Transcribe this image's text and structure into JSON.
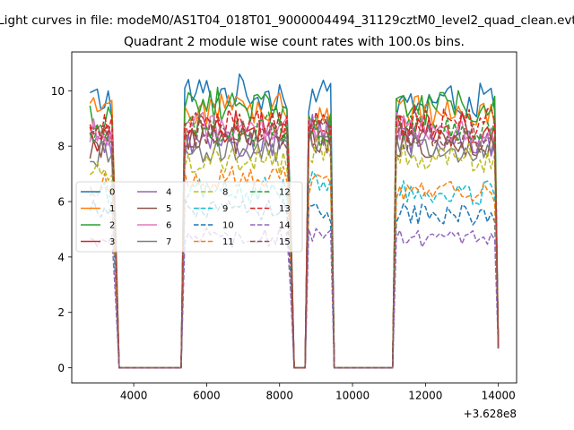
{
  "chart_data": {
    "type": "line",
    "suptitle": "Light curves in file: modeM0/AS1T04_018T01_9000004494_31129cztM0_level2_quad_clean.evt",
    "title": "Quadrant 2 module wise count rates with 100.0s bins.",
    "xlabel": "",
    "ylabel": "",
    "x_offset_label": "+3.628e8",
    "xlim": [
      2300,
      14500
    ],
    "ylim": [
      -0.55,
      11.4
    ],
    "xticks": [
      4000,
      6000,
      8000,
      10000,
      12000,
      14000
    ],
    "xtick_labels": [
      "4000",
      "6000",
      "8000",
      "10000",
      "12000",
      "14000"
    ],
    "yticks": [
      0,
      2,
      4,
      6,
      8,
      10
    ],
    "ytick_labels": [
      "0",
      "2",
      "4",
      "6",
      "8",
      "10"
    ],
    "grid": false,
    "legend_position": "center-left",
    "legend_columns": 4,
    "x_range": [
      2800,
      14000
    ],
    "bin_width": 100,
    "on_intervals": [
      [
        2800,
        3500
      ],
      [
        5400,
        8300
      ],
      [
        8800,
        9400
      ],
      [
        11200,
        14000
      ]
    ],
    "series": [
      {
        "name": "0",
        "color": "#1f77b4",
        "dash": "solid",
        "level_segments": [
          9.7,
          9.9,
          9.8,
          9.6
        ]
      },
      {
        "name": "1",
        "color": "#ff7f0e",
        "dash": "solid",
        "level_segments": [
          9.2,
          9.4,
          8.9,
          9.3
        ]
      },
      {
        "name": "2",
        "color": "#2ca02c",
        "dash": "solid",
        "level_segments": [
          9.0,
          9.5,
          9.0,
          9.4
        ]
      },
      {
        "name": "3",
        "color": "#d62728",
        "dash": "solid",
        "level_segments": [
          8.3,
          8.7,
          8.5,
          8.6
        ]
      },
      {
        "name": "4",
        "color": "#9467bd",
        "dash": "solid",
        "level_segments": [
          8.0,
          8.1,
          8.6,
          8.2
        ]
      },
      {
        "name": "5",
        "color": "#8c564b",
        "dash": "solid",
        "level_segments": [
          8.0,
          8.2,
          8.3,
          8.1
        ]
      },
      {
        "name": "6",
        "color": "#e377c2",
        "dash": "solid",
        "level_segments": [
          8.5,
          8.6,
          8.8,
          8.6
        ]
      },
      {
        "name": "7",
        "color": "#7f7f7f",
        "dash": "solid",
        "level_segments": [
          7.8,
          7.9,
          8.2,
          8.0
        ]
      },
      {
        "name": "8",
        "color": "#bcbd22",
        "dash": "dashed",
        "level_segments": [
          7.2,
          7.5,
          7.8,
          7.6
        ]
      },
      {
        "name": "9",
        "color": "#17becf",
        "dash": "dashed",
        "level_segments": [
          6.3,
          6.4,
          6.6,
          6.3
        ]
      },
      {
        "name": "10",
        "color": "#1f77b4",
        "dash": "dashed",
        "level_segments": [
          5.8,
          5.7,
          5.6,
          5.5
        ]
      },
      {
        "name": "11",
        "color": "#ff7f0e",
        "dash": "dashed",
        "level_segments": [
          6.6,
          6.8,
          6.7,
          6.4
        ]
      },
      {
        "name": "12",
        "color": "#2ca02c",
        "dash": "dashed",
        "level_segments": [
          8.4,
          8.6,
          8.6,
          8.7
        ]
      },
      {
        "name": "13",
        "color": "#d62728",
        "dash": "dashed",
        "level_segments": [
          8.6,
          8.8,
          8.9,
          8.8
        ]
      },
      {
        "name": "14",
        "color": "#9467bd",
        "dash": "dashed",
        "level_segments": [
          4.6,
          4.7,
          4.8,
          4.7
        ]
      },
      {
        "name": "15",
        "color": "#8c564b",
        "dash": "dashed",
        "level_segments": [
          8.2,
          8.4,
          8.5,
          8.3
        ]
      }
    ]
  }
}
